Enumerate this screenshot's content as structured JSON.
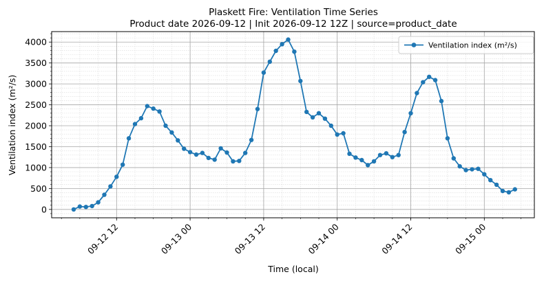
{
  "chart_data": {
    "type": "line",
    "title": "Plaskett Fire: Ventilation Time Series",
    "subtitle": "Product date 2026-09-12 | Init 2026-09-12 12Z | source=product_date",
    "xlabel": "Time (local)",
    "ylabel": "Ventilation index (m²/s)",
    "x_start": "2026-09-12 06:00",
    "x_tick_labels": [
      "09-12 12",
      "09-13 00",
      "09-13 12",
      "09-14 00",
      "09-14 12",
      "09-15 00"
    ],
    "y_ticks": [
      0,
      500,
      1000,
      1500,
      2000,
      2500,
      3000,
      3500,
      4000
    ],
    "ylim": [
      -200,
      4250
    ],
    "grid": true,
    "legend_position": "top-right",
    "series": [
      {
        "name": "Ventilation index (m²/s)",
        "color": "#1f77b4",
        "values": [
          0,
          70,
          60,
          80,
          170,
          350,
          550,
          780,
          1070,
          1700,
          2040,
          2180,
          2470,
          2410,
          2340,
          2000,
          1840,
          1650,
          1450,
          1370,
          1310,
          1350,
          1230,
          1190,
          1460,
          1360,
          1150,
          1160,
          1350,
          1660,
          2400,
          3270,
          3530,
          3790,
          3950,
          4060,
          3770,
          3070,
          2330,
          2200,
          2300,
          2170,
          2000,
          1790,
          1820,
          1330,
          1240,
          1180,
          1060,
          1150,
          1300,
          1340,
          1250,
          1300,
          1850,
          2300,
          2780,
          3040,
          3170,
          3090,
          2590,
          1700,
          1220,
          1030,
          940,
          960,
          970,
          840,
          700,
          590,
          440,
          410,
          480
        ]
      }
    ]
  }
}
